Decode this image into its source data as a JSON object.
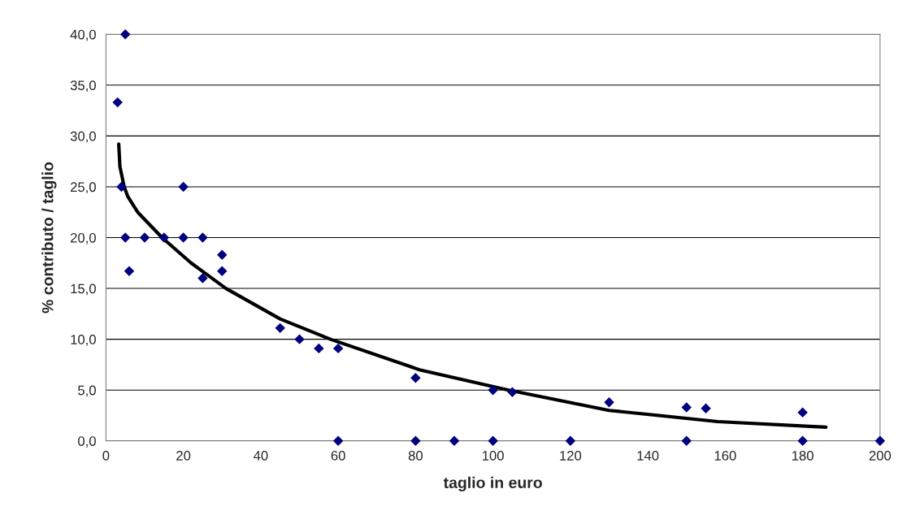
{
  "chart_data": {
    "type": "scatter",
    "xlabel": "taglio in euro",
    "ylabel": "% contributo / taglio",
    "xlim": [
      0,
      200
    ],
    "xticks": [
      0,
      20,
      40,
      60,
      80,
      100,
      120,
      140,
      160,
      180,
      200
    ],
    "ylim": [
      0,
      40
    ],
    "yticks": [
      {
        "value": 0,
        "label": "0,0"
      },
      {
        "value": 5,
        "label": "5,0"
      },
      {
        "value": 10,
        "label": "10,0"
      },
      {
        "value": 15,
        "label": "15,0"
      },
      {
        "value": 20,
        "label": "20,0"
      },
      {
        "value": 25,
        "label": "25,0"
      },
      {
        "value": 30,
        "label": "30,0"
      },
      {
        "value": 35,
        "label": "35,0"
      },
      {
        "value": 40,
        "label": "40,0"
      }
    ],
    "grid": "y",
    "legend": false,
    "series": [
      {
        "color": "#000080",
        "marker": "diamond",
        "x": [
          3,
          5,
          4,
          5,
          6,
          10,
          15,
          20,
          20,
          25,
          25,
          30,
          30,
          45,
          50,
          55,
          60,
          60,
          80,
          80,
          90,
          100,
          100,
          105,
          120,
          130,
          150,
          150,
          155,
          180,
          180,
          200
        ],
        "values": [
          33.3,
          40,
          25,
          20,
          16.7,
          20,
          20,
          25,
          20,
          20,
          16,
          18.3,
          16.7,
          11.1,
          10,
          9.1,
          9.1,
          0,
          6.2,
          0,
          0,
          5,
          0,
          4.8,
          0,
          3.8,
          3.3,
          0,
          3.2,
          2.8,
          0,
          0
        ]
      },
      {
        "type": "line",
        "color": "#000000",
        "marker": "none",
        "line_style": "solid",
        "x": [
          3.3,
          3.6,
          4.7,
          5.7,
          8.2,
          14.5,
          22,
          31,
          45,
          58,
          81,
          104,
          130,
          158,
          186
        ],
        "values": [
          29.2,
          27,
          25,
          24,
          22.5,
          20,
          17.5,
          15,
          12,
          10,
          7,
          5,
          3,
          1.9,
          1.35
        ]
      }
    ]
  }
}
